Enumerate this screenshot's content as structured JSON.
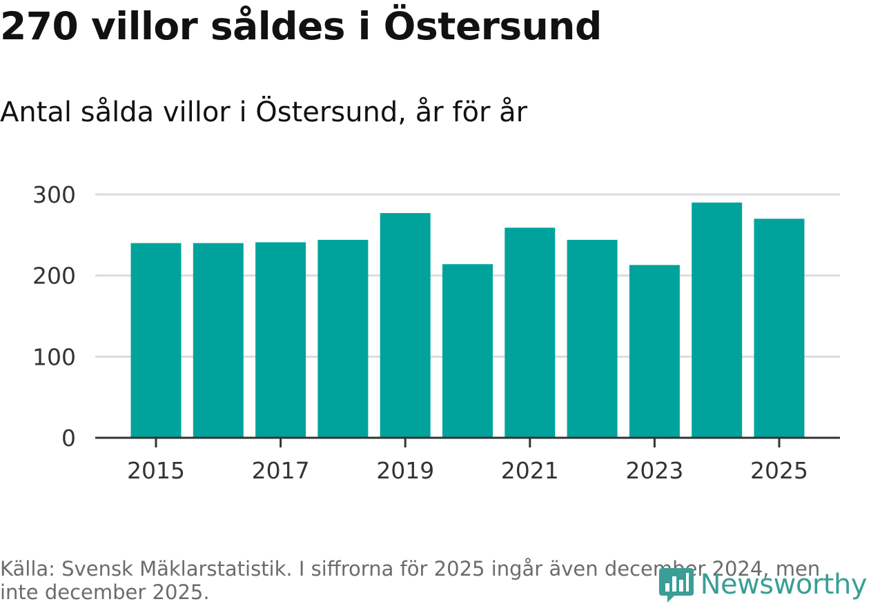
{
  "title": "270 villor såldes i Östersund",
  "subtitle": "Antal sålda villor i Östersund, år för år",
  "footer": {
    "source": "Källa: Svensk Mäklarstatistik. I siffrorna för 2025 ingår även december 2024, men inte december 2025."
  },
  "brand": {
    "name": "Newsworthy",
    "icon": "newsworthy-logo-icon"
  },
  "colors": {
    "bar": "#00a39b",
    "grid": "#dcdcdc",
    "axis": "#333333",
    "tick_text": "#333333",
    "brand": "#3a9e96"
  },
  "chart_data": {
    "type": "bar",
    "title": "270 villor såldes i Östersund",
    "subtitle": "Antal sålda villor i Östersund, år för år",
    "categories": [
      "2015",
      "2016",
      "2017",
      "2018",
      "2019",
      "2020",
      "2021",
      "2022",
      "2023",
      "2024",
      "2025"
    ],
    "values": [
      240,
      240,
      241,
      244,
      277,
      214,
      259,
      244,
      213,
      290,
      270
    ],
    "x_tick_labels": [
      "2015",
      "2017",
      "2019",
      "2021",
      "2023",
      "2025"
    ],
    "y_ticks": [
      0,
      100,
      200,
      300
    ],
    "ylim": [
      0,
      300
    ],
    "xlabel": "",
    "ylabel": "",
    "grid": true,
    "legend": "none"
  }
}
